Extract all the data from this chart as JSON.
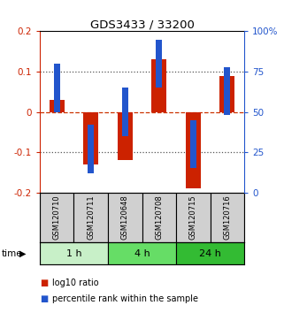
{
  "title": "GDS3433 / 33200",
  "samples": [
    "GSM120710",
    "GSM120711",
    "GSM120648",
    "GSM120708",
    "GSM120715",
    "GSM120716"
  ],
  "groups": [
    {
      "label": "1 h",
      "indices": [
        0,
        1
      ]
    },
    {
      "label": "4 h",
      "indices": [
        2,
        3
      ]
    },
    {
      "label": "24 h",
      "indices": [
        4,
        5
      ]
    }
  ],
  "group_colors": [
    "#c8f0c8",
    "#66dd66",
    "#33bb33"
  ],
  "log10_ratio": [
    0.03,
    -0.13,
    -0.12,
    0.13,
    -0.19,
    0.09
  ],
  "percentile_rank_pct": [
    65,
    27,
    50,
    80,
    30,
    63
  ],
  "ylim": [
    -0.2,
    0.2
  ],
  "yticks_left": [
    -0.2,
    -0.1,
    0.0,
    0.1,
    0.2
  ],
  "ytick_labels_left": [
    "-0.2",
    "-0.1",
    "0",
    "0.1",
    "0.2"
  ],
  "ytick_labels_right": [
    "0",
    "25",
    "50",
    "75",
    "100%"
  ],
  "red_color": "#cc2200",
  "blue_color": "#2255cc",
  "bar_width": 0.45,
  "blue_square_size": 0.12,
  "sample_box_color": "#d0d0d0",
  "background_color": "#ffffff",
  "zero_line_color": "#cc3300",
  "dot_line_color": "#555555"
}
